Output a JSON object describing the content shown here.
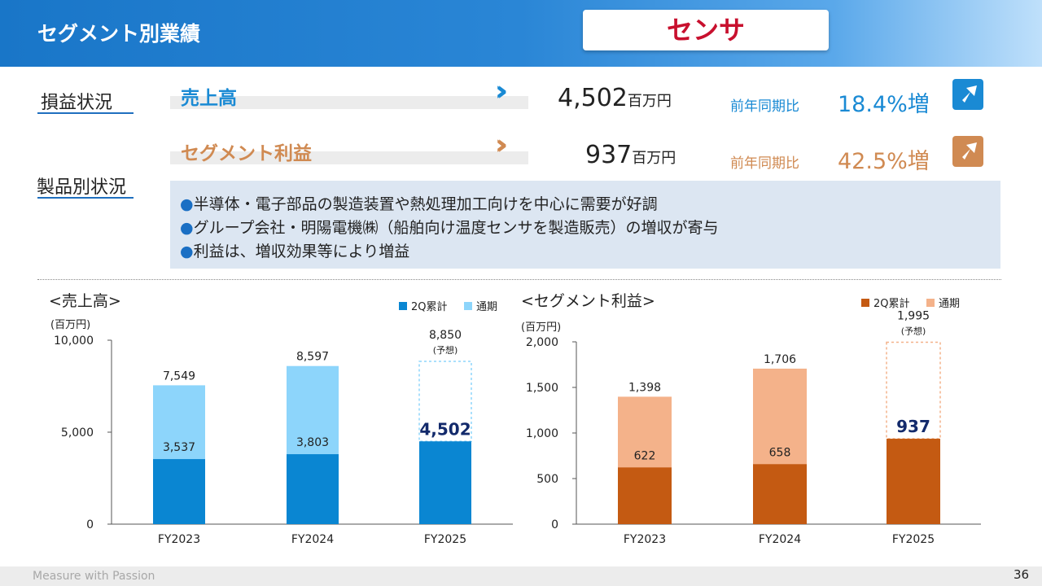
{
  "header": {
    "title": "セグメント別業績",
    "segment": "センサ"
  },
  "sections": {
    "profit_loss": "損益状況",
    "product": "製品別状況"
  },
  "kpis": [
    {
      "label": "売上高",
      "value": "4,502",
      "unit": "百万円",
      "compare_label": "前年同期比",
      "change": "18.4%増",
      "color": "#1a8ad4"
    },
    {
      "label": "セグメント利益",
      "value": "937",
      "unit": "百万円",
      "compare_label": "前年同期比",
      "change": "42.5%増",
      "color": "#d08a52"
    }
  ],
  "bullets": [
    "半導体・電子部品の製造装置や熱処理加工向けを中心に需要が好調",
    "グループ会社・明陽電機㈱（船舶向け温度センサを製造販売）の増収が寄与",
    "利益は、増収効果等により増益"
  ],
  "bullet_mark": "●",
  "footer": {
    "tagline": "Measure with Passion",
    "page": "36"
  },
  "chart_data": [
    {
      "type": "bar",
      "title": "<売上高>",
      "unit_label": "(百万円)",
      "categories": [
        "FY2023",
        "FY2024",
        "FY2025"
      ],
      "series": [
        {
          "name": "2Q累計",
          "values": [
            3537,
            3803,
            4502
          ],
          "color": "#0a86d2"
        },
        {
          "name": "通期",
          "values": [
            7549,
            8597,
            8850
          ],
          "color": "#8dd5fb"
        }
      ],
      "total_labels": [
        "7,549",
        "8,597",
        "8,850"
      ],
      "h1_labels": [
        "3,537",
        "3,803",
        "4,502"
      ],
      "forecast_note": "(予想)",
      "ylim": [
        0,
        10000
      ],
      "yticks": [
        "0",
        "5,000",
        "10,000"
      ],
      "ytick_values": [
        0,
        5000,
        10000
      ],
      "legend": "top-right"
    },
    {
      "type": "bar",
      "title": "<セグメント利益>",
      "unit_label": "(百万円)",
      "categories": [
        "FY2023",
        "FY2024",
        "FY2025"
      ],
      "series": [
        {
          "name": "2Q累計",
          "values": [
            622,
            658,
            937
          ],
          "color": "#c45a12"
        },
        {
          "name": "通期",
          "values": [
            1398,
            1706,
            1995
          ],
          "color": "#f4b28a"
        }
      ],
      "total_labels": [
        "1,398",
        "1,706",
        "1,995"
      ],
      "h1_labels": [
        "622",
        "658",
        "937"
      ],
      "forecast_note": "(予想)",
      "ylim": [
        0,
        2000
      ],
      "yticks": [
        "0",
        "500",
        "1,000",
        "1,500",
        "2,000"
      ],
      "ytick_values": [
        0,
        500,
        1000,
        1500,
        2000
      ],
      "legend": "top-right"
    }
  ]
}
